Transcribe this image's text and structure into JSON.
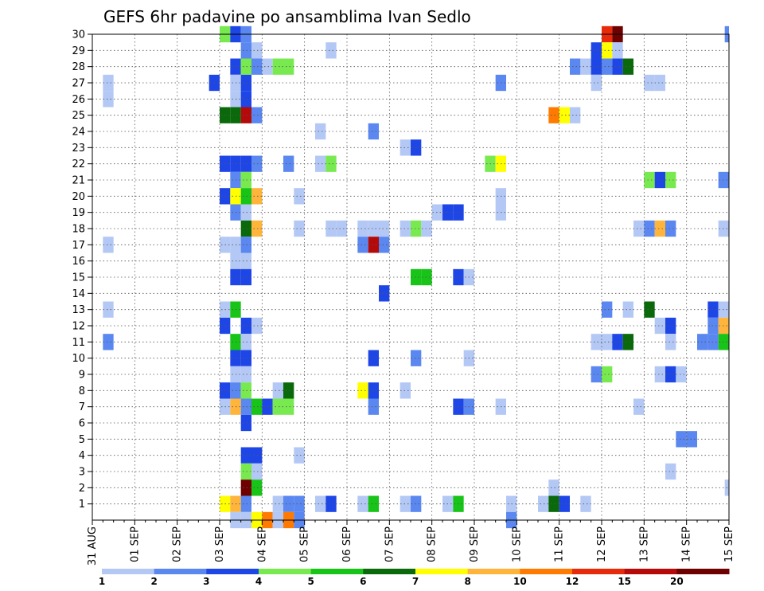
{
  "chart_data": {
    "type": "heatmap",
    "title": "GEFS 6hr padavine po ansamblima Ivan Sedlo",
    "x_ticks": [
      "31 AUG",
      "01 SEP",
      "02 SEP",
      "03 SEP",
      "04 SEP",
      "05 SEP",
      "06 SEP",
      "07 SEP",
      "08 SEP",
      "09 SEP",
      "10 SEP",
      "11 SEP",
      "12 SEP",
      "13 SEP",
      "14 SEP",
      "15 SEP"
    ],
    "x_range": [
      0,
      15
    ],
    "step_days": 0.25,
    "y_ticks": [
      1,
      2,
      3,
      4,
      5,
      6,
      7,
      8,
      9,
      10,
      11,
      12,
      13,
      14,
      15,
      16,
      17,
      18,
      19,
      20,
      21,
      22,
      23,
      24,
      25,
      26,
      27,
      28,
      29,
      30
    ],
    "y_range": [
      0,
      30
    ],
    "grid": true,
    "legend": {
      "placement": "bottom",
      "labels": [
        "1",
        "2",
        "3",
        "4",
        "5",
        "6",
        "7",
        "8",
        "10",
        "12",
        "15",
        "20"
      ],
      "colors": [
        "#b4c8f5",
        "#5a87f0",
        "#1e46e6",
        "#78ea50",
        "#17c417",
        "#0a690a",
        "#ffff00",
        "#ffb43c",
        "#ff7a00",
        "#e62a0a",
        "#b40a0a",
        "#6e0000"
      ]
    },
    "cells": [
      {
        "member": 30,
        "days": 3.0,
        "level": 4
      },
      {
        "member": 30,
        "days": 3.25,
        "level": 3
      },
      {
        "member": 30,
        "days": 3.5,
        "level": 2
      },
      {
        "member": 30,
        "days": 12.0,
        "level": 10
      },
      {
        "member": 30,
        "days": 12.25,
        "level": 12
      },
      {
        "member": 30,
        "days": 14.9,
        "level": 2
      },
      {
        "member": 29,
        "days": 3.5,
        "level": 2
      },
      {
        "member": 29,
        "days": 3.75,
        "level": 1
      },
      {
        "member": 29,
        "days": 5.5,
        "level": 1
      },
      {
        "member": 29,
        "days": 11.75,
        "level": 3
      },
      {
        "member": 29,
        "days": 12.0,
        "level": 7
      },
      {
        "member": 29,
        "days": 12.25,
        "level": 1
      },
      {
        "member": 28,
        "days": 3.25,
        "level": 3
      },
      {
        "member": 28,
        "days": 3.5,
        "level": 4
      },
      {
        "member": 28,
        "days": 3.75,
        "level": 2
      },
      {
        "member": 28,
        "days": 4.0,
        "level": 1
      },
      {
        "member": 28,
        "days": 4.25,
        "level": 4
      },
      {
        "member": 28,
        "days": 4.5,
        "level": 4
      },
      {
        "member": 28,
        "days": 11.25,
        "level": 2
      },
      {
        "member": 28,
        "days": 11.5,
        "level": 1
      },
      {
        "member": 28,
        "days": 11.75,
        "level": 3
      },
      {
        "member": 28,
        "days": 12.0,
        "level": 2
      },
      {
        "member": 28,
        "days": 12.25,
        "level": 3
      },
      {
        "member": 28,
        "days": 12.5,
        "level": 6
      },
      {
        "member": 27,
        "days": 0.25,
        "level": 1
      },
      {
        "member": 27,
        "days": 2.75,
        "level": 3
      },
      {
        "member": 27,
        "days": 3.25,
        "level": 1
      },
      {
        "member": 27,
        "days": 3.5,
        "level": 3
      },
      {
        "member": 27,
        "days": 9.5,
        "level": 2
      },
      {
        "member": 27,
        "days": 11.75,
        "level": 1
      },
      {
        "member": 27,
        "days": 13.0,
        "level": 1
      },
      {
        "member": 27,
        "days": 13.25,
        "level": 1
      },
      {
        "member": 26,
        "days": 0.25,
        "level": 1
      },
      {
        "member": 26,
        "days": 3.25,
        "level": 1
      },
      {
        "member": 26,
        "days": 3.5,
        "level": 3
      },
      {
        "member": 25,
        "days": 3.0,
        "level": 6
      },
      {
        "member": 25,
        "days": 3.25,
        "level": 6
      },
      {
        "member": 25,
        "days": 3.5,
        "level": 11
      },
      {
        "member": 25,
        "days": 3.75,
        "level": 2
      },
      {
        "member": 25,
        "days": 10.75,
        "level": 9
      },
      {
        "member": 25,
        "days": 11.0,
        "level": 7
      },
      {
        "member": 25,
        "days": 11.25,
        "level": 1
      },
      {
        "member": 24,
        "days": 5.25,
        "level": 1
      },
      {
        "member": 24,
        "days": 6.5,
        "level": 2
      },
      {
        "member": 23,
        "days": 7.25,
        "level": 1
      },
      {
        "member": 23,
        "days": 7.5,
        "level": 3
      },
      {
        "member": 22,
        "days": 3.0,
        "level": 3
      },
      {
        "member": 22,
        "days": 3.25,
        "level": 3
      },
      {
        "member": 22,
        "days": 3.5,
        "level": 3
      },
      {
        "member": 22,
        "days": 3.75,
        "level": 2
      },
      {
        "member": 22,
        "days": 4.5,
        "level": 2
      },
      {
        "member": 22,
        "days": 5.25,
        "level": 1
      },
      {
        "member": 22,
        "days": 5.5,
        "level": 4
      },
      {
        "member": 22,
        "days": 9.25,
        "level": 4
      },
      {
        "member": 22,
        "days": 9.5,
        "level": 7
      },
      {
        "member": 21,
        "days": 3.25,
        "level": 2
      },
      {
        "member": 21,
        "days": 3.5,
        "level": 4
      },
      {
        "member": 21,
        "days": 13.0,
        "level": 4
      },
      {
        "member": 21,
        "days": 13.25,
        "level": 3
      },
      {
        "member": 21,
        "days": 13.5,
        "level": 4
      },
      {
        "member": 21,
        "days": 14.75,
        "level": 2
      },
      {
        "member": 21,
        "days": 15.0,
        "level": 1
      },
      {
        "member": 20,
        "days": 3.0,
        "level": 3
      },
      {
        "member": 20,
        "days": 3.25,
        "level": 7
      },
      {
        "member": 20,
        "days": 3.5,
        "level": 5
      },
      {
        "member": 20,
        "days": 3.75,
        "level": 8
      },
      {
        "member": 20,
        "days": 4.75,
        "level": 1
      },
      {
        "member": 20,
        "days": 9.5,
        "level": 1
      },
      {
        "member": 19,
        "days": 3.25,
        "level": 2
      },
      {
        "member": 19,
        "days": 3.5,
        "level": 1
      },
      {
        "member": 19,
        "days": 8.0,
        "level": 1
      },
      {
        "member": 19,
        "days": 8.25,
        "level": 3
      },
      {
        "member": 19,
        "days": 8.5,
        "level": 3
      },
      {
        "member": 19,
        "days": 9.5,
        "level": 1
      },
      {
        "member": 18,
        "days": 3.5,
        "level": 6
      },
      {
        "member": 18,
        "days": 3.75,
        "level": 8
      },
      {
        "member": 18,
        "days": 4.75,
        "level": 1
      },
      {
        "member": 18,
        "days": 5.5,
        "level": 1
      },
      {
        "member": 18,
        "days": 5.75,
        "level": 1
      },
      {
        "member": 18,
        "days": 6.25,
        "level": 1
      },
      {
        "member": 18,
        "days": 6.5,
        "level": 1
      },
      {
        "member": 18,
        "days": 6.75,
        "level": 1
      },
      {
        "member": 18,
        "days": 7.25,
        "level": 1
      },
      {
        "member": 18,
        "days": 7.5,
        "level": 4
      },
      {
        "member": 18,
        "days": 7.75,
        "level": 1
      },
      {
        "member": 18,
        "days": 12.75,
        "level": 1
      },
      {
        "member": 18,
        "days": 13.0,
        "level": 2
      },
      {
        "member": 18,
        "days": 13.25,
        "level": 8
      },
      {
        "member": 18,
        "days": 13.5,
        "level": 2
      },
      {
        "member": 18,
        "days": 14.75,
        "level": 1
      },
      {
        "member": 17,
        "days": 0.25,
        "level": 1
      },
      {
        "member": 17,
        "days": 3.0,
        "level": 1
      },
      {
        "member": 17,
        "days": 3.25,
        "level": 1
      },
      {
        "member": 17,
        "days": 3.5,
        "level": 2
      },
      {
        "member": 17,
        "days": 6.25,
        "level": 2
      },
      {
        "member": 17,
        "days": 6.5,
        "level": 11
      },
      {
        "member": 17,
        "days": 6.75,
        "level": 2
      },
      {
        "member": 16,
        "days": 3.25,
        "level": 1
      },
      {
        "member": 16,
        "days": 3.5,
        "level": 1
      },
      {
        "member": 15,
        "days": 3.25,
        "level": 3
      },
      {
        "member": 15,
        "days": 3.5,
        "level": 3
      },
      {
        "member": 15,
        "days": 7.5,
        "level": 5
      },
      {
        "member": 15,
        "days": 7.75,
        "level": 5
      },
      {
        "member": 15,
        "days": 8.5,
        "level": 3
      },
      {
        "member": 15,
        "days": 8.75,
        "level": 1
      },
      {
        "member": 14,
        "days": 6.75,
        "level": 3
      },
      {
        "member": 13,
        "days": 0.25,
        "level": 1
      },
      {
        "member": 13,
        "days": 3.0,
        "level": 1
      },
      {
        "member": 13,
        "days": 3.25,
        "level": 5
      },
      {
        "member": 13,
        "days": 12.0,
        "level": 2
      },
      {
        "member": 13,
        "days": 12.5,
        "level": 1
      },
      {
        "member": 13,
        "days": 13.0,
        "level": 6
      },
      {
        "member": 13,
        "days": 14.5,
        "level": 3
      },
      {
        "member": 13,
        "days": 14.75,
        "level": 1
      },
      {
        "member": 12,
        "days": 3.0,
        "level": 3
      },
      {
        "member": 12,
        "days": 3.5,
        "level": 3
      },
      {
        "member": 12,
        "days": 3.75,
        "level": 1
      },
      {
        "member": 12,
        "days": 13.25,
        "level": 1
      },
      {
        "member": 12,
        "days": 13.5,
        "level": 3
      },
      {
        "member": 12,
        "days": 14.5,
        "level": 2
      },
      {
        "member": 12,
        "days": 14.75,
        "level": 8
      },
      {
        "member": 11,
        "days": 0.25,
        "level": 2
      },
      {
        "member": 11,
        "days": 3.25,
        "level": 5
      },
      {
        "member": 11,
        "days": 3.5,
        "level": 1
      },
      {
        "member": 11,
        "days": 11.75,
        "level": 1
      },
      {
        "member": 11,
        "days": 12.0,
        "level": 1
      },
      {
        "member": 11,
        "days": 12.25,
        "level": 3
      },
      {
        "member": 11,
        "days": 12.5,
        "level": 6
      },
      {
        "member": 11,
        "days": 13.5,
        "level": 1
      },
      {
        "member": 11,
        "days": 14.25,
        "level": 2
      },
      {
        "member": 11,
        "days": 14.5,
        "level": 2
      },
      {
        "member": 11,
        "days": 14.75,
        "level": 5
      },
      {
        "member": 10,
        "days": 3.25,
        "level": 3
      },
      {
        "member": 10,
        "days": 3.5,
        "level": 3
      },
      {
        "member": 10,
        "days": 6.5,
        "level": 3
      },
      {
        "member": 10,
        "days": 7.5,
        "level": 2
      },
      {
        "member": 10,
        "days": 8.75,
        "level": 1
      },
      {
        "member": 9,
        "days": 3.25,
        "level": 1
      },
      {
        "member": 9,
        "days": 3.5,
        "level": 1
      },
      {
        "member": 9,
        "days": 11.75,
        "level": 2
      },
      {
        "member": 9,
        "days": 12.0,
        "level": 4
      },
      {
        "member": 9,
        "days": 13.25,
        "level": 1
      },
      {
        "member": 9,
        "days": 13.5,
        "level": 3
      },
      {
        "member": 9,
        "days": 13.75,
        "level": 1
      },
      {
        "member": 8,
        "days": 3.0,
        "level": 3
      },
      {
        "member": 8,
        "days": 3.25,
        "level": 2
      },
      {
        "member": 8,
        "days": 3.5,
        "level": 4
      },
      {
        "member": 8,
        "days": 4.25,
        "level": 1
      },
      {
        "member": 8,
        "days": 4.5,
        "level": 6
      },
      {
        "member": 8,
        "days": 6.25,
        "level": 7
      },
      {
        "member": 8,
        "days": 6.5,
        "level": 3
      },
      {
        "member": 8,
        "days": 7.25,
        "level": 1
      },
      {
        "member": 7,
        "days": 3.0,
        "level": 1
      },
      {
        "member": 7,
        "days": 3.25,
        "level": 8
      },
      {
        "member": 7,
        "days": 3.5,
        "level": 2
      },
      {
        "member": 7,
        "days": 3.75,
        "level": 5
      },
      {
        "member": 7,
        "days": 4.0,
        "level": 3
      },
      {
        "member": 7,
        "days": 4.25,
        "level": 4
      },
      {
        "member": 7,
        "days": 4.5,
        "level": 4
      },
      {
        "member": 7,
        "days": 6.5,
        "level": 2
      },
      {
        "member": 7,
        "days": 8.5,
        "level": 3
      },
      {
        "member": 7,
        "days": 8.75,
        "level": 2
      },
      {
        "member": 7,
        "days": 9.5,
        "level": 1
      },
      {
        "member": 7,
        "days": 12.75,
        "level": 1
      },
      {
        "member": 6,
        "days": 3.5,
        "level": 3
      },
      {
        "member": 5,
        "days": 13.75,
        "level": 2
      },
      {
        "member": 5,
        "days": 14.0,
        "level": 2
      },
      {
        "member": 4,
        "days": 3.5,
        "level": 3
      },
      {
        "member": 4,
        "days": 3.75,
        "level": 3
      },
      {
        "member": 4,
        "days": 4.75,
        "level": 1
      },
      {
        "member": 3,
        "days": 3.5,
        "level": 4
      },
      {
        "member": 3,
        "days": 3.75,
        "level": 1
      },
      {
        "member": 3,
        "days": 13.5,
        "level": 1
      },
      {
        "member": 2,
        "days": 3.5,
        "level": 12
      },
      {
        "member": 2,
        "days": 3.75,
        "level": 5
      },
      {
        "member": 2,
        "days": 10.75,
        "level": 1
      },
      {
        "member": 2,
        "days": 14.9,
        "level": 1
      },
      {
        "member": 1,
        "days": 3.0,
        "level": 7
      },
      {
        "member": 1,
        "days": 3.25,
        "level": 8
      },
      {
        "member": 1,
        "days": 3.5,
        "level": 2
      },
      {
        "member": 1,
        "days": 4.25,
        "level": 1
      },
      {
        "member": 1,
        "days": 4.5,
        "level": 2
      },
      {
        "member": 1,
        "days": 4.75,
        "level": 2
      },
      {
        "member": 1,
        "days": 5.25,
        "level": 1
      },
      {
        "member": 1,
        "days": 5.5,
        "level": 3
      },
      {
        "member": 1,
        "days": 6.25,
        "level": 1
      },
      {
        "member": 1,
        "days": 6.5,
        "level": 5
      },
      {
        "member": 1,
        "days": 7.25,
        "level": 1
      },
      {
        "member": 1,
        "days": 7.5,
        "level": 2
      },
      {
        "member": 1,
        "days": 8.25,
        "level": 1
      },
      {
        "member": 1,
        "days": 8.5,
        "level": 5
      },
      {
        "member": 1,
        "days": 9.75,
        "level": 1
      },
      {
        "member": 1,
        "days": 10.5,
        "level": 1
      },
      {
        "member": 1,
        "days": 10.75,
        "level": 6
      },
      {
        "member": 1,
        "days": 11.0,
        "level": 3
      },
      {
        "member": 1,
        "days": 11.5,
        "level": 1
      },
      {
        "member": 0,
        "days": 3.25,
        "level": 1
      },
      {
        "member": 0,
        "days": 3.5,
        "level": 1
      },
      {
        "member": 0,
        "days": 3.75,
        "level": 7
      },
      {
        "member": 0,
        "days": 4.0,
        "level": 9
      },
      {
        "member": 0,
        "days": 4.25,
        "level": 1
      },
      {
        "member": 0,
        "days": 4.5,
        "level": 9
      },
      {
        "member": 0,
        "days": 4.75,
        "level": 2
      },
      {
        "member": 0,
        "days": 9.75,
        "level": 2
      }
    ]
  }
}
